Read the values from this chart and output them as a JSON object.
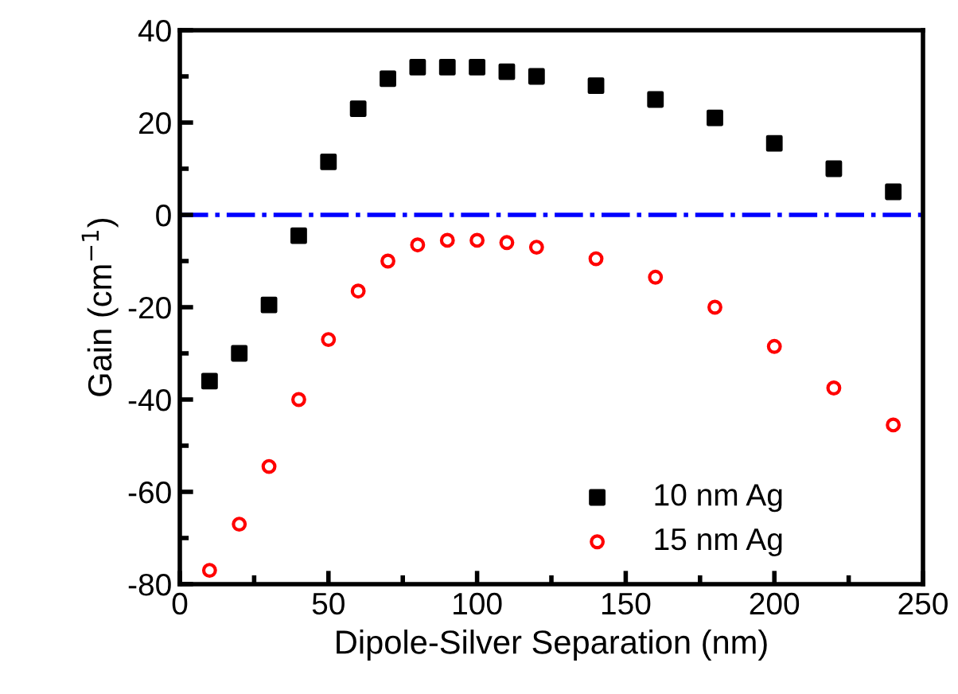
{
  "chart_data": {
    "type": "scatter",
    "xlabel": "Dipole-Silver Separation (nm)",
    "ylabel": "Gain (cm$^{−1}$)",
    "x": [
      10,
      20,
      30,
      40,
      50,
      60,
      70,
      80,
      90,
      100,
      110,
      120,
      140,
      160,
      180,
      200,
      220,
      240
    ],
    "series": [
      {
        "name": "10 nm Ag",
        "color": "#000000",
        "marker": "square",
        "values": [
          -36,
          -30,
          -19.5,
          -4.5,
          11.5,
          23,
          29.5,
          32,
          32,
          32,
          31,
          30,
          28,
          25,
          21,
          15.5,
          10,
          5
        ]
      },
      {
        "name": "15 nm Ag",
        "color": "#ff0000",
        "marker": "circle",
        "values": [
          -77,
          -67,
          -54.5,
          -40,
          -27,
          -16.5,
          -10,
          -6.5,
          -5.5,
          -5.5,
          -6,
          -7,
          -9.5,
          -13.5,
          -20,
          -28.5,
          -37.5,
          -45.5
        ]
      }
    ],
    "xlim": [
      0,
      250
    ],
    "xticks": [
      0,
      50,
      100,
      150,
      200,
      250
    ],
    "ylim": [
      -80,
      40
    ],
    "yticks": [
      -80,
      -60,
      -40,
      -20,
      0,
      20,
      40
    ],
    "ref_lines": [
      {
        "axis": "y",
        "value": 0,
        "color": "#0000ff",
        "line_style": "dashdot"
      }
    ],
    "legend": "bottom right",
    "grid": false
  }
}
